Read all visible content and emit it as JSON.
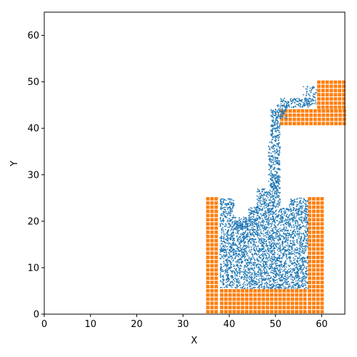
{
  "chart_data": {
    "type": "scatter",
    "title": "",
    "xlabel": "X",
    "ylabel": "Y",
    "xlim": [
      0,
      65
    ],
    "ylim": [
      0,
      65
    ],
    "x_ticks": [
      0,
      10,
      20,
      30,
      40,
      50,
      60
    ],
    "y_ticks": [
      0,
      10,
      20,
      30,
      40,
      50,
      60
    ],
    "grid": false,
    "colors": {
      "fluid": "#1f77b4",
      "walls": "#ff7f0e"
    },
    "series": [
      {
        "role": "fluid",
        "regions": [
          {
            "x": [
              38,
              57
            ],
            "y": [
              5.5,
              20
            ],
            "n": 2600
          },
          {
            "x": [
              38,
              41
            ],
            "y": [
              20,
              25
            ],
            "n": 150
          },
          {
            "x": [
              41,
              44
            ],
            "y": [
              18.5,
              21
            ],
            "n": 70
          },
          {
            "x": [
              44,
              46
            ],
            "y": [
              20,
              23
            ],
            "n": 70
          },
          {
            "x": [
              46,
              49
            ],
            "y": [
              20,
              27
            ],
            "n": 220
          },
          {
            "x": [
              49,
              51
            ],
            "y": [
              20,
              30
            ],
            "n": 200
          },
          {
            "x": [
              51,
              53
            ],
            "y": [
              20,
              23
            ],
            "n": 60
          },
          {
            "x": [
              53,
              57
            ],
            "y": [
              20,
              25
            ],
            "n": 200
          },
          {
            "x": [
              48.5,
              51
            ],
            "y": [
              27,
              37
            ],
            "n": 220
          },
          {
            "x": [
              49,
              51
            ],
            "y": [
              37,
              44
            ],
            "n": 150
          },
          {
            "x": [
              50,
              52.5
            ],
            "y": [
              42,
              45
            ],
            "n": 70
          },
          {
            "x": [
              51,
              57.5
            ],
            "y": [
              44.5,
              46.5
            ],
            "n": 140
          },
          {
            "x": [
              56,
              59
            ],
            "y": [
              45,
              49
            ],
            "n": 60
          }
        ]
      },
      {
        "role": "walls",
        "spacing": 0.9,
        "blocks": [
          {
            "x": [
              35,
              38
            ],
            "y": [
              0,
              25.2
            ]
          },
          {
            "x": [
              38,
              57
            ],
            "y": [
              0,
              5.4
            ]
          },
          {
            "x": [
              57,
              60.5
            ],
            "y": [
              0,
              25.2
            ]
          },
          {
            "x": [
              51,
              65
            ],
            "y": [
              40.5,
              44
            ]
          },
          {
            "x": [
              59,
              65
            ],
            "y": [
              44,
              50.3
            ]
          }
        ]
      }
    ]
  }
}
